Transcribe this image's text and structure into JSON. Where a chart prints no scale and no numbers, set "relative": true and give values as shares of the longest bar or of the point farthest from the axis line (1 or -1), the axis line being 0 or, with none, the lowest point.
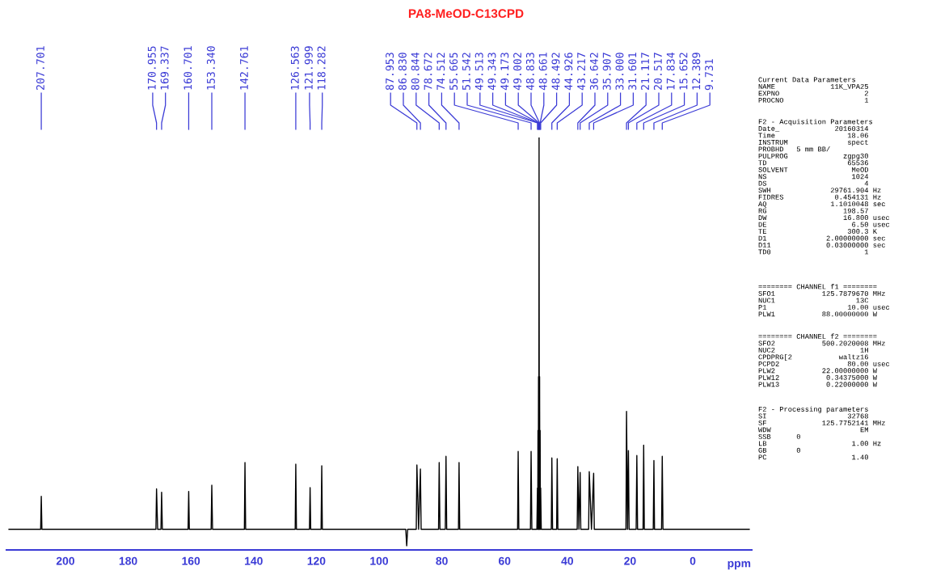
{
  "chart_data": {
    "type": "line",
    "relative": true,
    "title": "PA8-MeOD-C13CPD",
    "xlabel": "ppm",
    "xlim": [
      218.8,
      -18.8
    ],
    "xticks": [
      200,
      180,
      160,
      140,
      120,
      100,
      80,
      60,
      40,
      20,
      0
    ],
    "tick_labels": "x",
    "grid": false,
    "legend": false,
    "marker": "none",
    "line_style": "solid",
    "series": [
      {
        "color": "#000000",
        "x": [
          218,
          207.9,
          207.701,
          207.5,
          171.15,
          170.955,
          170.6,
          169.55,
          169.337,
          169.1,
          160.9,
          160.701,
          160.5,
          153.55,
          153.34,
          153.1,
          142.95,
          142.761,
          142.55,
          126.75,
          126.563,
          126.35,
          122.2,
          121.999,
          121.8,
          118.5,
          118.282,
          118.1,
          91.5,
          91.2,
          90.9,
          88.15,
          87.953,
          87.4,
          86.83,
          86.6,
          81.05,
          80.844,
          80.6,
          78.9,
          78.672,
          78.45,
          74.7,
          74.512,
          74.3,
          55.85,
          55.665,
          55.45,
          51.75,
          51.542,
          51.3,
          49.7,
          49.513,
          49.43,
          49.343,
          49.26,
          49.173,
          49.09,
          49.002,
          48.92,
          48.833,
          48.75,
          48.661,
          48.58,
          48.492,
          48.3,
          45.1,
          44.926,
          44.7,
          43.4,
          43.217,
          43.0,
          36.85,
          36.642,
          36.3,
          35.907,
          35.7,
          33.2,
          33.0,
          32.3,
          31.601,
          31.4,
          21.3,
          21.117,
          20.8,
          20.517,
          20.3,
          18.05,
          17.834,
          17.6,
          15.85,
          15.652,
          15.45,
          12.6,
          12.389,
          12.2,
          9.95,
          9.731,
          9.5,
          -18
        ],
        "values": [
          0.05,
          0.05,
          0.13,
          0.05,
          0.05,
          0.148,
          0.05,
          0.05,
          0.14,
          0.05,
          0.05,
          0.142,
          0.05,
          0.05,
          0.157,
          0.05,
          0.05,
          0.212,
          0.05,
          0.05,
          0.208,
          0.05,
          0.05,
          0.151,
          0.05,
          0.05,
          0.204,
          0.05,
          0.05,
          0.01,
          0.05,
          0.05,
          0.206,
          0.05,
          0.196,
          0.05,
          0.05,
          0.212,
          0.05,
          0.05,
          0.227,
          0.05,
          0.05,
          0.212,
          0.05,
          0.05,
          0.239,
          0.05,
          0.05,
          0.239,
          0.05,
          0.05,
          0.15,
          0.05,
          0.29,
          0.05,
          0.42,
          0.05,
          1.0,
          0.05,
          0.42,
          0.05,
          0.29,
          0.05,
          0.15,
          0.05,
          0.05,
          0.223,
          0.05,
          0.05,
          0.221,
          0.05,
          0.05,
          0.202,
          0.05,
          0.188,
          0.05,
          0.05,
          0.19,
          0.05,
          0.186,
          0.05,
          0.05,
          0.336,
          0.05,
          0.241,
          0.05,
          0.05,
          0.229,
          0.05,
          0.05,
          0.254,
          0.05,
          0.05,
          0.217,
          0.05,
          0.05,
          0.227,
          0.05,
          0.05
        ]
      }
    ],
    "annotations": [
      {
        "text": "207.701",
        "x": 207.701
      },
      {
        "text": "170.955",
        "x": 170.955
      },
      {
        "text": "169.337",
        "x": 169.337
      },
      {
        "text": "160.701",
        "x": 160.701
      },
      {
        "text": "153.340",
        "x": 153.34
      },
      {
        "text": "142.761",
        "x": 142.761
      },
      {
        "text": "126.563",
        "x": 126.563
      },
      {
        "text": "121.999",
        "x": 121.999
      },
      {
        "text": "118.282",
        "x": 118.282
      },
      {
        "text": "87.953",
        "x": 87.953
      },
      {
        "text": "86.830",
        "x": 86.83
      },
      {
        "text": "80.844",
        "x": 80.844
      },
      {
        "text": "78.672",
        "x": 78.672
      },
      {
        "text": "74.512",
        "x": 74.512
      },
      {
        "text": "55.665",
        "x": 55.665
      },
      {
        "text": "51.542",
        "x": 51.542
      },
      {
        "text": "49.513",
        "x": 49.513
      },
      {
        "text": "49.343",
        "x": 49.343
      },
      {
        "text": "49.173",
        "x": 49.173
      },
      {
        "text": "49.002",
        "x": 49.002
      },
      {
        "text": "48.833",
        "x": 48.833
      },
      {
        "text": "48.661",
        "x": 48.661
      },
      {
        "text": "48.492",
        "x": 48.492
      },
      {
        "text": "44.926",
        "x": 44.926
      },
      {
        "text": "43.217",
        "x": 43.217
      },
      {
        "text": "36.642",
        "x": 36.642
      },
      {
        "text": "35.907",
        "x": 35.907
      },
      {
        "text": "33.000",
        "x": 33.0
      },
      {
        "text": "31.601",
        "x": 31.601
      },
      {
        "text": "21.117",
        "x": 21.117
      },
      {
        "text": "20.517",
        "x": 20.517
      },
      {
        "text": "17.834",
        "x": 17.834
      },
      {
        "text": "15.652",
        "x": 15.652
      },
      {
        "text": "12.389",
        "x": 12.389
      },
      {
        "text": "9.731",
        "x": 9.731
      },
      "Current Data Parameters\nNAME             11K_VPA25\nEXPNO                    2\nPROCNO                   1",
      "F2 - Acquisition Parameters\nDate_             20160314\nTime                 18.06\nINSTRUM              spect\nPROBHD   5 mm BB/\nPULPROG             zgpg30\nTD                   65536\nSOLVENT               MeOD\nNS                    1024\nDS                       4\nSWH              29761.904 Hz\nFIDRES            0.454131 Hz\nAQ               1.1010048 sec\nRG                  198.57\nDW                  16.800 usec\nDE                    6.50 usec\nTE                   300.3 K\nD1              2.00000000 sec\nD11             0.03000000 sec\nTD0                      1",
      "======== CHANNEL f1 ========\nSFO1           125.7879670 MHz\nNUC1                   13C\nP1                   10.00 usec\nPLW1           88.00000000 W",
      "======== CHANNEL f2 ========\nSFO2           500.2020008 MHz\nNUC2                    1H\nCPDPRG[2           waltz16\nPCPD2                80.00 usec\nPLW2           22.00000000 W\nPLW12           0.34375000 W\nPLW13           0.22000000 W",
      "F2 - Processing parameters\nSI                   32768\nSF             125.7752141 MHz\nWDW                     EM\nSSB      0\nLB                    1.00 Hz\nGB       0\nPC                    1.40"
    ]
  }
}
